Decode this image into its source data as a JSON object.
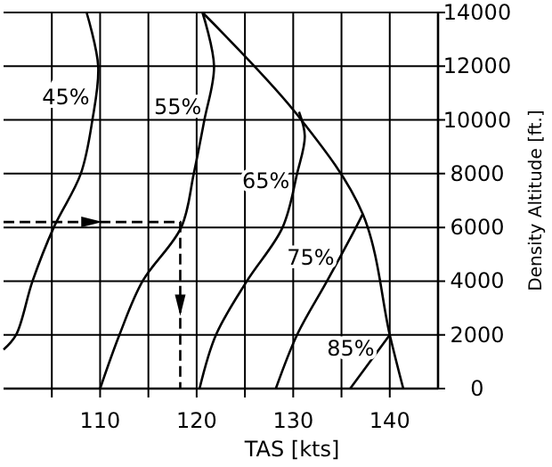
{
  "chart_data": {
    "type": "line",
    "xlabel": "TAS [kts]",
    "ylabel": "Density Altitude [ft.]",
    "xlim": [
      100,
      145
    ],
    "ylim": [
      0,
      14000
    ],
    "xticks": [
      {
        "value": 105,
        "label": null
      },
      110,
      {
        "value": 115,
        "label": null
      },
      120,
      {
        "value": 125,
        "label": null
      },
      130,
      {
        "value": 135,
        "label": null
      },
      140
    ],
    "yticks": [
      0,
      2000,
      4000,
      6000,
      8000,
      10000,
      12000,
      14000
    ],
    "grid": true,
    "marker": "none",
    "line_style": "solid",
    "series": [
      {
        "name": "45%",
        "color": "#000000",
        "x": [
          100,
          101.3,
          103,
          105.2,
          108,
          109.2,
          109.8,
          108.6
        ],
        "values": [
          1450,
          2000,
          4000,
          6000,
          8000,
          10000,
          12000,
          14000
        ]
      },
      {
        "name": "55%",
        "color": "#000000",
        "x": [
          110,
          112,
          114.4,
          118.4,
          119.7,
          120.8,
          121.8,
          120.6
        ],
        "values": [
          0,
          2000,
          4000,
          6000,
          8000,
          10000,
          12000,
          14000
        ]
      },
      {
        "name": "65%",
        "color": "#000000",
        "x": [
          120.3,
          122,
          125.2,
          128.9,
          130.4,
          131.2,
          130.6
        ],
        "values": [
          0,
          2000,
          4000,
          6000,
          8000,
          9400,
          10300
        ]
      },
      {
        "name": "75%",
        "color": "#000000",
        "x": [
          128.2,
          130.4,
          133.5,
          136.5,
          137.2
        ],
        "values": [
          0,
          2000,
          4000,
          6000,
          6500
        ]
      },
      {
        "name": "85%",
        "color": "#000000",
        "x": [
          135.9,
          140
        ],
        "values": [
          0,
          2000
        ]
      },
      {
        "color": "#000000",
        "x": [
          120.6,
          130.4,
          137.2,
          140,
          141.4
        ],
        "values": [
          14000,
          10200,
          6500,
          2000,
          0
        ]
      },
      {
        "color": "#000000",
        "x": [
          100,
          118.3,
          118.3
        ],
        "values": [
          6200,
          6200,
          0
        ],
        "line_style": "dashed"
      }
    ]
  }
}
